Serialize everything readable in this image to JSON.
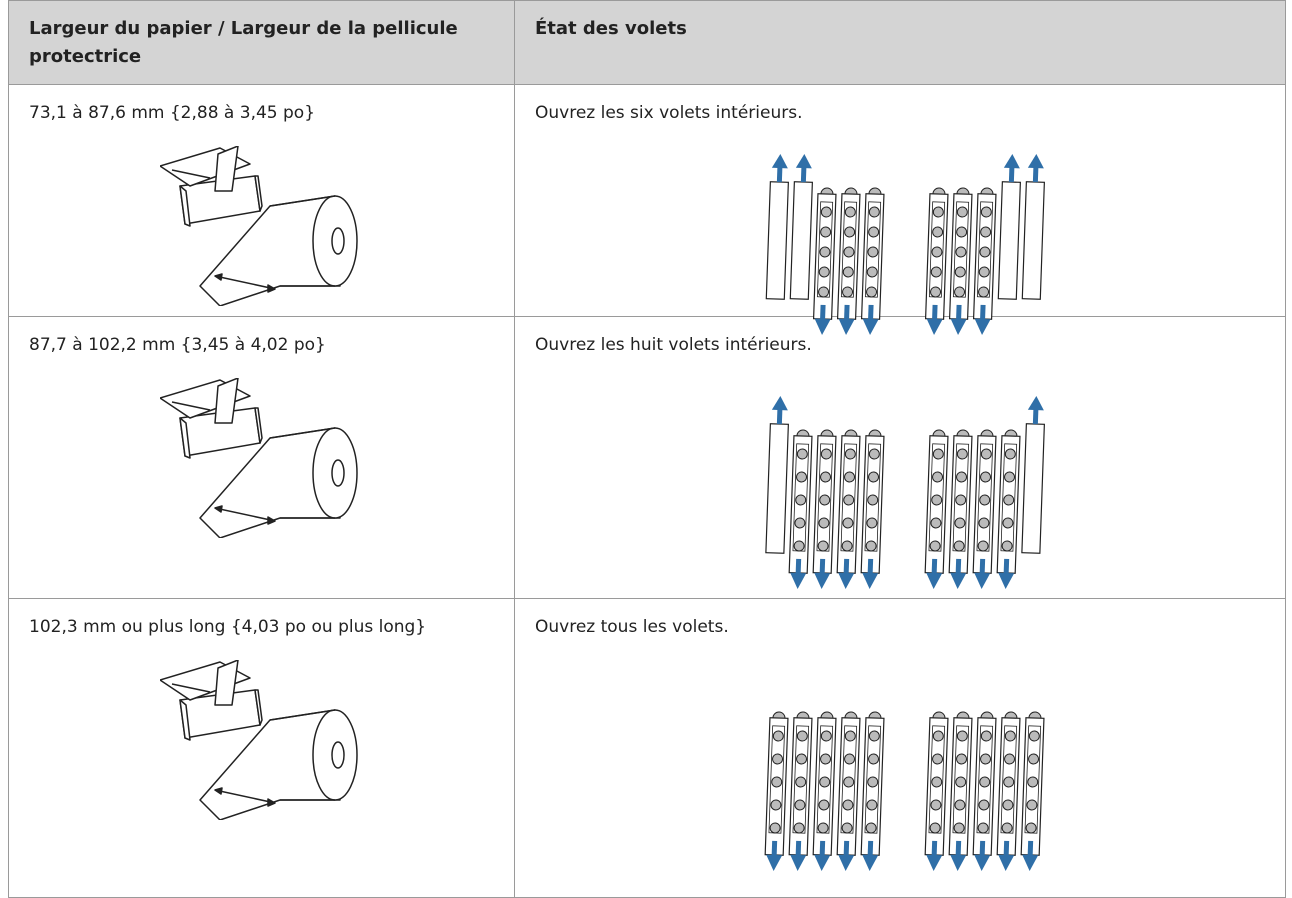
{
  "table": {
    "header": [
      "Largeur du papier / Largeur de la pellicule protectrice",
      "État des volets"
    ],
    "rows": [
      [
        "73,1 à 87,6 mm {2,88 à 3,45 po}",
        "Ouvrez les six volets intérieurs."
      ],
      [
        "87,7 à 102,2 mm {3,45 à 4,02 po}",
        "Ouvrez les huit volets intérieurs."
      ],
      [
        "102,3 mm ou plus long {4,03 po ou plus long}",
        "Ouvrez tous les volets."
      ]
    ]
  }
}
